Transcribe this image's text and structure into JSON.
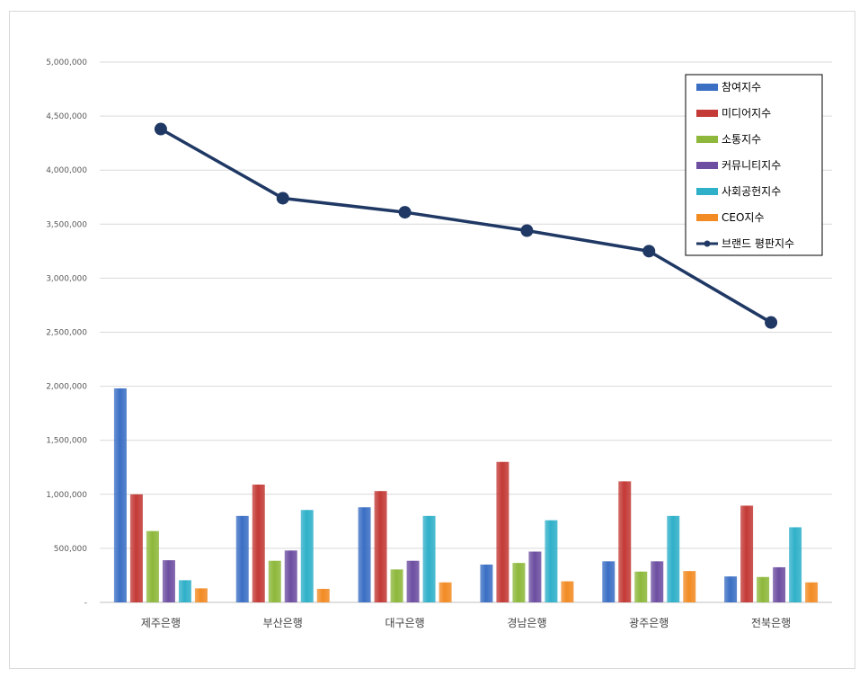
{
  "chart_data": {
    "type": "bar",
    "categories": [
      "제주은행",
      "부산은행",
      "대구은행",
      "경남은행",
      "광주은행",
      "전북은행"
    ],
    "ylim": [
      0,
      5000000
    ],
    "y_ticks": [
      "-",
      "500,000",
      "1,000,000",
      "1,500,000",
      "2,000,000",
      "2,500,000",
      "3,000,000",
      "3,500,000",
      "4,000,000",
      "4,500,000",
      "5,000,000"
    ],
    "grid": true,
    "legend_position": "top-right",
    "series": [
      {
        "name": "참여지수",
        "kind": "bar",
        "color": "#3b6fc4",
        "values": [
          1980000,
          800000,
          880000,
          350000,
          380000,
          240000
        ]
      },
      {
        "name": "미디어지수",
        "kind": "bar",
        "color": "#c33a36",
        "values": [
          1000000,
          1090000,
          1030000,
          1300000,
          1120000,
          895000
        ]
      },
      {
        "name": "소통지수",
        "kind": "bar",
        "color": "#8db83b",
        "values": [
          660000,
          385000,
          305000,
          365000,
          285000,
          235000
        ]
      },
      {
        "name": "커뮤니티지수",
        "kind": "bar",
        "color": "#6d4ea1",
        "values": [
          390000,
          480000,
          385000,
          470000,
          380000,
          325000
        ]
      },
      {
        "name": "사회공헌지수",
        "kind": "bar",
        "color": "#2fb0c9",
        "values": [
          205000,
          855000,
          800000,
          760000,
          800000,
          695000
        ]
      },
      {
        "name": "CEO지수",
        "kind": "bar",
        "color": "#f28b24",
        "values": [
          130000,
          125000,
          185000,
          195000,
          290000,
          185000
        ]
      },
      {
        "name": "브랜드 평판지수",
        "kind": "line",
        "color": "#1f3864",
        "values": [
          4380000,
          3740000,
          3610000,
          3440000,
          3250000,
          2590000
        ]
      }
    ]
  }
}
